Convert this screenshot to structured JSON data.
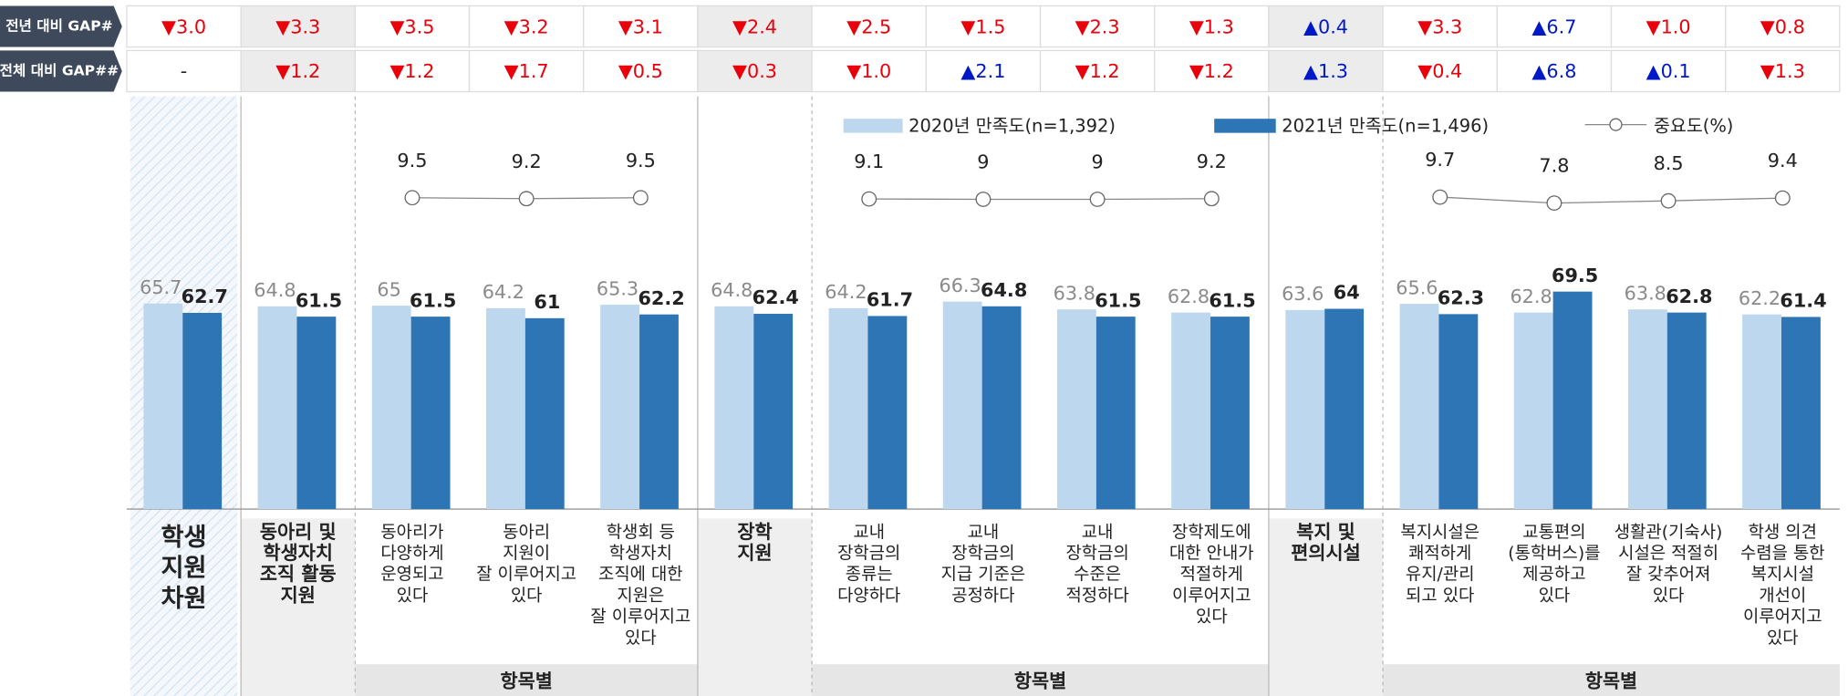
{
  "chart_data": {
    "type": "bar",
    "categories": [
      [
        "학생",
        "지원",
        "차원"
      ],
      [
        "동아리 및",
        "학생자치",
        "조직 활동",
        "지원"
      ],
      [
        "동아리가",
        "다양하게",
        "운영되고",
        "있다"
      ],
      [
        "동아리",
        "지원이",
        "잘 이루어지고",
        "있다"
      ],
      [
        "학생회 등",
        "학생자치",
        "조직에 대한",
        "지원은",
        "잘 이루어지고",
        "있다"
      ],
      [
        "장학",
        "지원"
      ],
      [
        "교내",
        "장학금의",
        "종류는",
        "다양하다"
      ],
      [
        "교내",
        "장학금의",
        "지급 기준은",
        "공정하다"
      ],
      [
        "교내",
        "장학금의",
        "수준은",
        "적정하다"
      ],
      [
        "장학제도에",
        "대한 안내가",
        "적절하게",
        "이루어지고",
        "있다"
      ],
      [
        "복지 및",
        "편의시설"
      ],
      [
        "복지시설은",
        "쾌적하게",
        "유지/관리",
        "되고 있다"
      ],
      [
        "교통편의",
        "(통학버스)를",
        "제공하고",
        "있다"
      ],
      [
        "생활관(기숙사)",
        "시설은 적절히",
        "잘 갖추어져",
        "있다"
      ],
      [
        "학생 의견",
        "수렴을 통한",
        "복지시설",
        "개선이",
        "이루어지고",
        "있다"
      ]
    ],
    "series": [
      {
        "name": "2020년 만족도(n=1,392)",
        "color": "#bdd7ee",
        "values": [
          65.7,
          64.8,
          65.0,
          64.2,
          65.3,
          64.8,
          64.2,
          66.3,
          63.8,
          62.8,
          63.6,
          65.6,
          62.8,
          63.8,
          62.2
        ]
      },
      {
        "name": "2021년 만족도(n=1,496)",
        "color": "#2e75b6",
        "values": [
          62.7,
          61.5,
          61.5,
          61.0,
          62.2,
          62.4,
          61.7,
          64.8,
          61.5,
          61.5,
          64.0,
          62.3,
          69.5,
          62.8,
          61.4
        ]
      },
      {
        "name": "중요도(%)",
        "type": "line",
        "axis": "y2",
        "color": "#888888",
        "values": [
          null,
          null,
          9.5,
          9.2,
          9.5,
          null,
          9.1,
          9.0,
          9.0,
          9.2,
          null,
          9.7,
          7.8,
          8.5,
          9.4
        ]
      }
    ],
    "ylim": [
      0,
      130
    ],
    "y2lim": [
      -90,
      40
    ],
    "gap_rows": [
      {
        "name": "전년 대비 GAP#",
        "values": [
          -3.0,
          -3.3,
          -3.5,
          -3.2,
          -3.1,
          -2.4,
          -2.5,
          -1.5,
          -2.3,
          -1.3,
          0.4,
          -3.3,
          6.7,
          -1.0,
          -0.8
        ],
        "value_labels": [
          "▼3.0",
          "▼3.3",
          "▼3.5",
          "▼3.2",
          "▼3.1",
          "▼2.4",
          "▼2.5",
          "▼1.5",
          "▼2.3",
          "▼1.3",
          "▲0.4",
          "▼3.3",
          "▲6.7",
          "▼1.0",
          "▼0.8"
        ]
      },
      {
        "name": "전체 대비 GAP##",
        "values": [
          null,
          -1.2,
          -1.2,
          -1.7,
          -0.5,
          -0.3,
          -1.0,
          2.1,
          -1.2,
          -1.2,
          1.3,
          -0.4,
          6.8,
          0.1,
          -1.3
        ],
        "value_labels": [
          "-",
          "▼1.2",
          "▼1.2",
          "▼1.7",
          "▼0.5",
          "▼0.3",
          "▼1.0",
          "▲2.1",
          "▼1.2",
          "▼1.2",
          "▲1.3",
          "▼0.4",
          "▲6.8",
          "▲0.1",
          "▼1.3"
        ]
      }
    ],
    "down_color": "#e8000b",
    "up_color": "#0019c8",
    "groups": [
      "항목별",
      "항목별",
      "항목별"
    ]
  }
}
